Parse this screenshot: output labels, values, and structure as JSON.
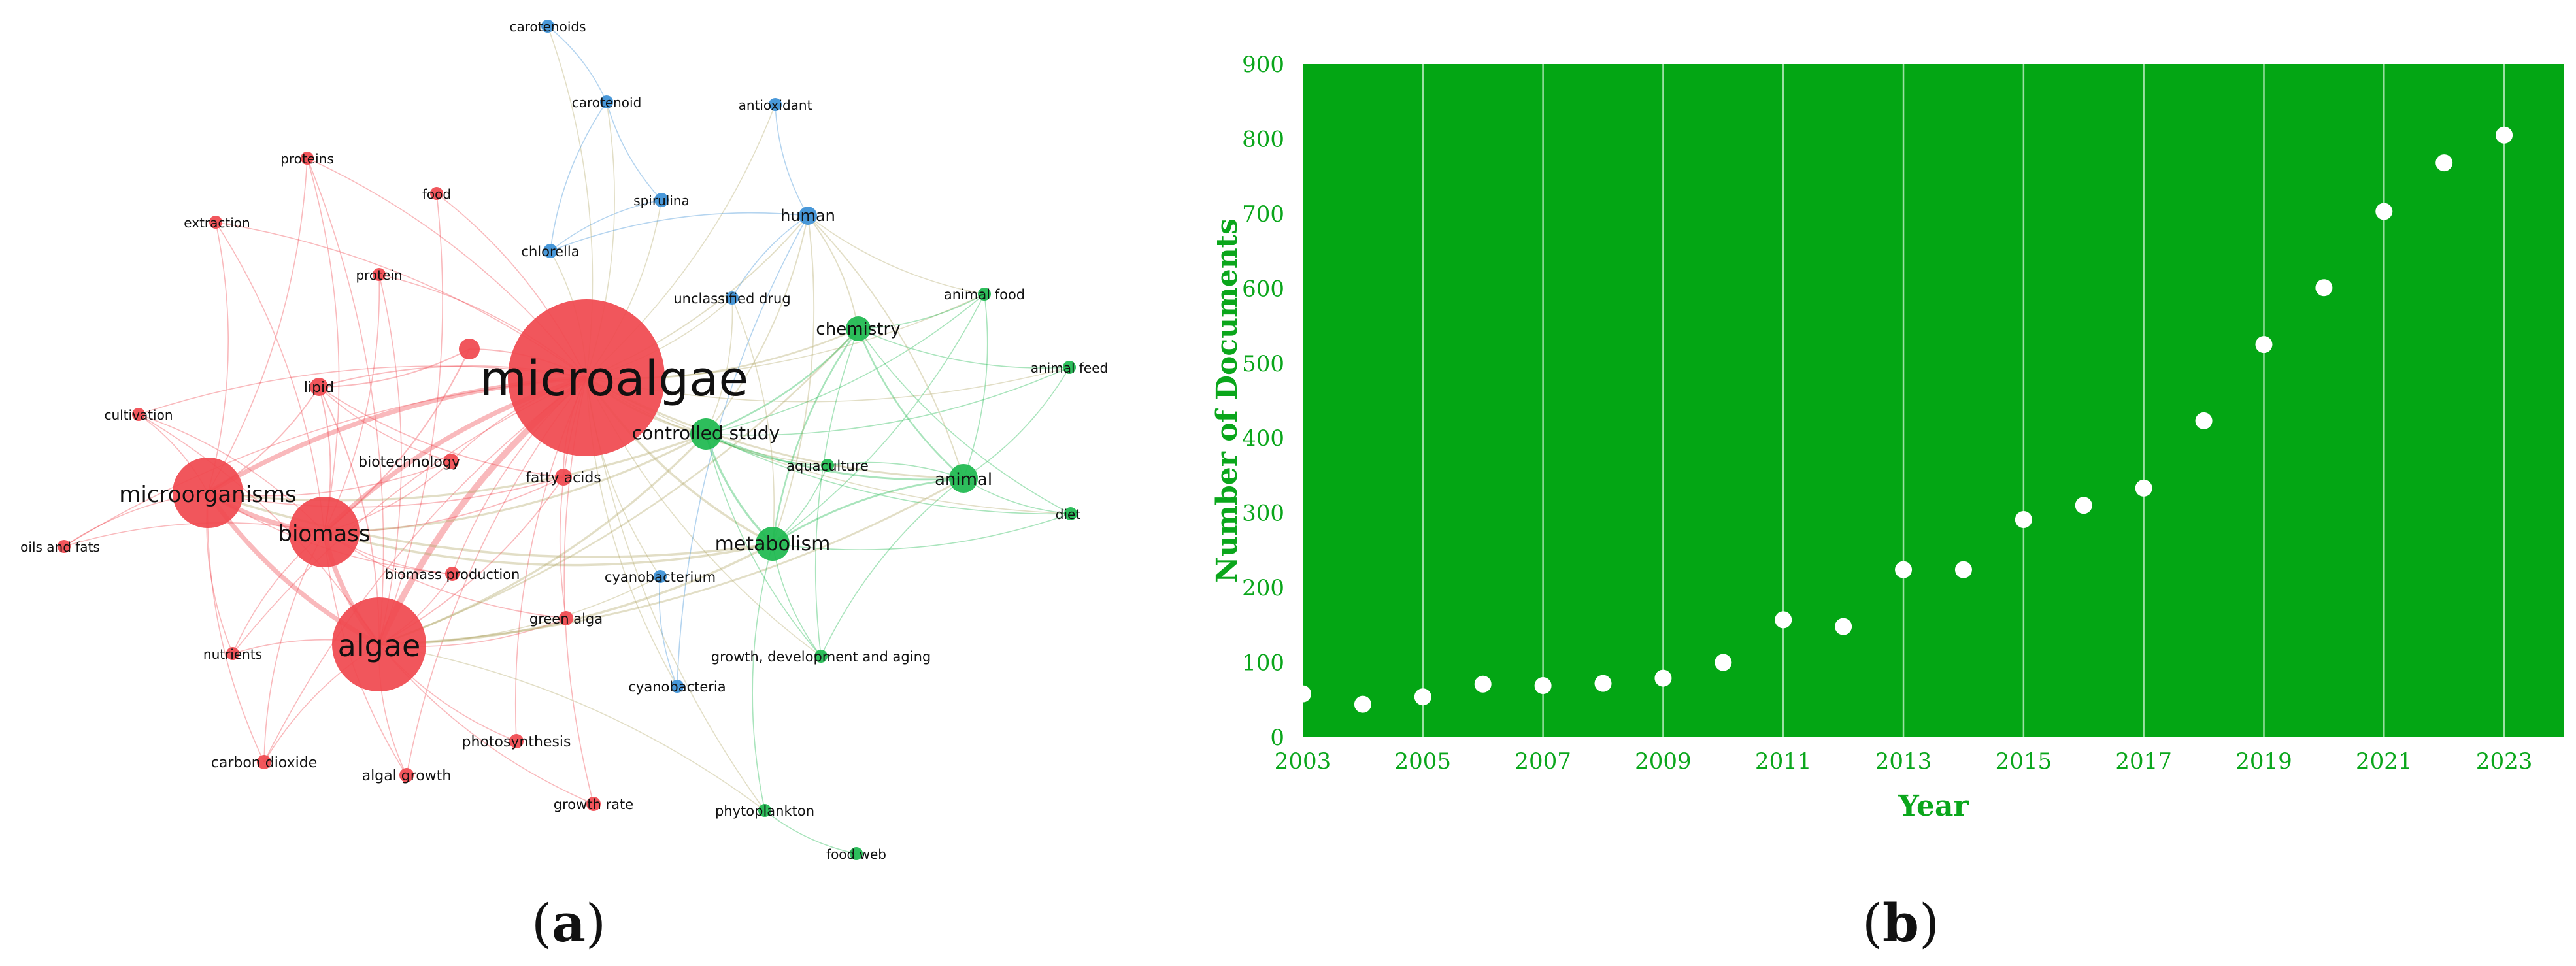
{
  "panel_a": {
    "label_prefix": "(",
    "label_letter": "a",
    "label_suffix": ")",
    "colors": {
      "red": "#f0484e",
      "green": "#1cb84e",
      "blue": "#3a8fd6",
      "olive": "#b3a868"
    },
    "nodes": [
      {
        "id": "microalgae",
        "label": "microalgae",
        "cluster": "red",
        "weight": 10
      },
      {
        "id": "microorganisms",
        "label": "microorganisms",
        "cluster": "red",
        "weight": 4.5
      },
      {
        "id": "biomass",
        "label": "biomass",
        "cluster": "red",
        "weight": 4.5
      },
      {
        "id": "algae",
        "label": "algae",
        "cluster": "red",
        "weight": 6
      },
      {
        "id": "lipid",
        "label": "lipid",
        "cluster": "red",
        "weight": 1.2
      },
      {
        "id": "cultivation",
        "label": "cultivation",
        "cluster": "red",
        "weight": 0.8
      },
      {
        "id": "oils-and-fats",
        "label": "oils and fats",
        "cluster": "red",
        "weight": 0.8
      },
      {
        "id": "proteins",
        "label": "proteins",
        "cluster": "red",
        "weight": 0.8
      },
      {
        "id": "food",
        "label": "food",
        "cluster": "red",
        "weight": 0.8
      },
      {
        "id": "extraction",
        "label": "extraction",
        "cluster": "red",
        "weight": 0.8
      },
      {
        "id": "protein",
        "label": "protein",
        "cluster": "red",
        "weight": 0.8
      },
      {
        "id": "biotechnology",
        "label": "biotechnology",
        "cluster": "red",
        "weight": 1
      },
      {
        "id": "fatty-acids",
        "label": "fatty acids",
        "cluster": "red",
        "weight": 1.1
      },
      {
        "id": "biomass-production",
        "label": "biomass production",
        "cluster": "red",
        "weight": 0.9
      },
      {
        "id": "green-alga",
        "label": "green alga",
        "cluster": "red",
        "weight": 0.9
      },
      {
        "id": "nutrients",
        "label": "nutrients",
        "cluster": "red",
        "weight": 0.8
      },
      {
        "id": "carbon-dioxide",
        "label": "carbon dioxide",
        "cluster": "red",
        "weight": 0.9
      },
      {
        "id": "algal-growth",
        "label": "algal growth",
        "cluster": "red",
        "weight": 0.9
      },
      {
        "id": "photosynthesis",
        "label": "photosynthesis",
        "cluster": "red",
        "weight": 0.9
      },
      {
        "id": "growth-rate",
        "label": "growth rate",
        "cluster": "red",
        "weight": 0.9
      },
      {
        "id": "unlabeled-red",
        "label": "",
        "cluster": "red",
        "weight": 1.3
      },
      {
        "id": "controlled-study",
        "label": "controlled study",
        "cluster": "green",
        "weight": 2
      },
      {
        "id": "chemistry",
        "label": "chemistry",
        "cluster": "green",
        "weight": 1.6
      },
      {
        "id": "animal-food",
        "label": "animal food",
        "cluster": "green",
        "weight": 0.8
      },
      {
        "id": "animal-feed",
        "label": "animal feed",
        "cluster": "green",
        "weight": 0.8
      },
      {
        "id": "aquaculture",
        "label": "aquaculture",
        "cluster": "green",
        "weight": 0.8
      },
      {
        "id": "animal",
        "label": "animal",
        "cluster": "green",
        "weight": 1.8
      },
      {
        "id": "diet",
        "label": "diet",
        "cluster": "green",
        "weight": 0.8
      },
      {
        "id": "metabolism",
        "label": "metabolism",
        "cluster": "green",
        "weight": 2.2
      },
      {
        "id": "growth-development-aging",
        "label": "growth, development and aging",
        "cluster": "green",
        "weight": 0.8
      },
      {
        "id": "phytoplankton",
        "label": "phytoplankton",
        "cluster": "green",
        "weight": 0.8
      },
      {
        "id": "food-web",
        "label": "food web",
        "cluster": "green",
        "weight": 0.8
      },
      {
        "id": "carotenoids",
        "label": "carotenoids",
        "cluster": "blue",
        "weight": 0.8
      },
      {
        "id": "carotenoid",
        "label": "carotenoid",
        "cluster": "blue",
        "weight": 0.8
      },
      {
        "id": "antioxidant",
        "label": "antioxidant",
        "cluster": "blue",
        "weight": 0.8
      },
      {
        "id": "spirulina",
        "label": "spirulina",
        "cluster": "blue",
        "weight": 0.9
      },
      {
        "id": "human",
        "label": "human",
        "cluster": "blue",
        "weight": 1.2
      },
      {
        "id": "chlorella",
        "label": "chlorella",
        "cluster": "blue",
        "weight": 0.9
      },
      {
        "id": "unclassified-drug",
        "label": "unclassified drug",
        "cluster": "blue",
        "weight": 0.8
      },
      {
        "id": "cyanobacterium",
        "label": "cyanobacterium",
        "cluster": "blue",
        "weight": 0.8
      },
      {
        "id": "cyanobacteria",
        "label": "cyanobacteria",
        "cluster": "blue",
        "weight": 0.8
      }
    ],
    "links": [
      [
        "microalgae",
        "microorganisms"
      ],
      [
        "microalgae",
        "biomass"
      ],
      [
        "microalgae",
        "algae"
      ],
      [
        "microalgae",
        "lipid"
      ],
      [
        "microalgae",
        "cultivation"
      ],
      [
        "microalgae",
        "oils-and-fats"
      ],
      [
        "microalgae",
        "proteins"
      ],
      [
        "microalgae",
        "food"
      ],
      [
        "microalgae",
        "extraction"
      ],
      [
        "microalgae",
        "protein"
      ],
      [
        "microalgae",
        "biotechnology"
      ],
      [
        "microalgae",
        "fatty-acids"
      ],
      [
        "microalgae",
        "biomass-production"
      ],
      [
        "microalgae",
        "green-alga"
      ],
      [
        "microalgae",
        "nutrients"
      ],
      [
        "microalgae",
        "carbon-dioxide"
      ],
      [
        "microalgae",
        "algal-growth"
      ],
      [
        "microalgae",
        "photosynthesis"
      ],
      [
        "microalgae",
        "growth-rate"
      ],
      [
        "microalgae",
        "controlled-study"
      ],
      [
        "microalgae",
        "chemistry"
      ],
      [
        "microalgae",
        "animal-food"
      ],
      [
        "microalgae",
        "animal-feed"
      ],
      [
        "microalgae",
        "aquaculture"
      ],
      [
        "microalgae",
        "animal"
      ],
      [
        "microalgae",
        "diet"
      ],
      [
        "microalgae",
        "metabolism"
      ],
      [
        "microalgae",
        "growth-development-aging"
      ],
      [
        "microalgae",
        "phytoplankton"
      ],
      [
        "microalgae",
        "carotenoids"
      ],
      [
        "microalgae",
        "carotenoid"
      ],
      [
        "microalgae",
        "antioxidant"
      ],
      [
        "microalgae",
        "spirulina"
      ],
      [
        "microalgae",
        "human"
      ],
      [
        "microalgae",
        "chlorella"
      ],
      [
        "microalgae",
        "unclassified-drug"
      ],
      [
        "microalgae",
        "cyanobacterium"
      ],
      [
        "microalgae",
        "cyanobacteria"
      ],
      [
        "microalgae",
        "unlabeled-red"
      ],
      [
        "microorganisms",
        "biomass"
      ],
      [
        "microorganisms",
        "algae"
      ],
      [
        "microorganisms",
        "lipid"
      ],
      [
        "microorganisms",
        "cultivation"
      ],
      [
        "microorganisms",
        "oils-and-fats"
      ],
      [
        "microorganisms",
        "proteins"
      ],
      [
        "microorganisms",
        "extraction"
      ],
      [
        "microorganisms",
        "biotechnology"
      ],
      [
        "microorganisms",
        "fatty-acids"
      ],
      [
        "microorganisms",
        "nutrients"
      ],
      [
        "microorganisms",
        "metabolism"
      ],
      [
        "microorganisms",
        "controlled-study"
      ],
      [
        "microorganisms",
        "biomass-production"
      ],
      [
        "microorganisms",
        "carbon-dioxide"
      ],
      [
        "biomass",
        "algae"
      ],
      [
        "biomass",
        "lipid"
      ],
      [
        "biomass",
        "cultivation"
      ],
      [
        "biomass",
        "oils-and-fats"
      ],
      [
        "biomass",
        "biotechnology"
      ],
      [
        "biomass",
        "fatty-acids"
      ],
      [
        "biomass",
        "biomass-production"
      ],
      [
        "biomass",
        "nutrients"
      ],
      [
        "biomass",
        "carbon-dioxide"
      ],
      [
        "biomass",
        "algal-growth"
      ],
      [
        "biomass",
        "metabolism"
      ],
      [
        "biomass",
        "controlled-study"
      ],
      [
        "biomass",
        "proteins"
      ],
      [
        "biomass",
        "extraction"
      ],
      [
        "biomass",
        "protein"
      ],
      [
        "biomass",
        "green-alga"
      ],
      [
        "biomass",
        "unlabeled-red"
      ],
      [
        "algae",
        "lipid"
      ],
      [
        "algae",
        "nutrients"
      ],
      [
        "algae",
        "carbon-dioxide"
      ],
      [
        "algae",
        "algal-growth"
      ],
      [
        "algae",
        "photosynthesis"
      ],
      [
        "algae",
        "growth-rate"
      ],
      [
        "algae",
        "fatty-acids"
      ],
      [
        "algae",
        "biomass-production"
      ],
      [
        "algae",
        "green-alga"
      ],
      [
        "algae",
        "metabolism"
      ],
      [
        "algae",
        "controlled-study"
      ],
      [
        "algae",
        "animal"
      ],
      [
        "algae",
        "chemistry"
      ],
      [
        "algae",
        "cultivation"
      ],
      [
        "algae",
        "protein"
      ],
      [
        "algae",
        "proteins"
      ],
      [
        "algae",
        "food"
      ],
      [
        "algae",
        "cyanobacterium"
      ],
      [
        "lipid",
        "fatty-acids"
      ],
      [
        "lipid",
        "biotechnology"
      ],
      [
        "lipid",
        "unlabeled-red"
      ],
      [
        "controlled-study",
        "chemistry"
      ],
      [
        "controlled-study",
        "animal"
      ],
      [
        "controlled-study",
        "metabolism"
      ],
      [
        "controlled-study",
        "animal-food"
      ],
      [
        "controlled-study",
        "animal-feed"
      ],
      [
        "controlled-study",
        "diet"
      ],
      [
        "controlled-study",
        "human"
      ],
      [
        "controlled-study",
        "aquaculture"
      ],
      [
        "controlled-study",
        "unclassified-drug"
      ],
      [
        "controlled-study",
        "growth-development-aging"
      ],
      [
        "chemistry",
        "animal"
      ],
      [
        "chemistry",
        "metabolism"
      ],
      [
        "chemistry",
        "animal-food"
      ],
      [
        "chemistry",
        "human"
      ],
      [
        "chemistry",
        "animal-feed"
      ],
      [
        "chemistry",
        "diet"
      ],
      [
        "chemistry",
        "growth-development-aging"
      ],
      [
        "animal",
        "metabolism"
      ],
      [
        "animal",
        "animal-food"
      ],
      [
        "animal",
        "animal-feed"
      ],
      [
        "animal",
        "diet"
      ],
      [
        "animal",
        "human"
      ],
      [
        "animal",
        "growth-development-aging"
      ],
      [
        "animal",
        "aquaculture"
      ],
      [
        "metabolism",
        "human"
      ],
      [
        "metabolism",
        "growth-development-aging"
      ],
      [
        "metabolism",
        "diet"
      ],
      [
        "metabolism",
        "phytoplankton"
      ],
      [
        "metabolism",
        "unclassified-drug"
      ],
      [
        "metabolism",
        "animal-food"
      ],
      [
        "metabolism",
        "aquaculture"
      ],
      [
        "human",
        "unclassified-drug"
      ],
      [
        "human",
        "animal-food"
      ],
      [
        "human",
        "chlorella"
      ],
      [
        "human",
        "cyanobacteria"
      ],
      [
        "carotenoid",
        "carotenoids"
      ],
      [
        "carotenoid",
        "chlorella"
      ],
      [
        "carotenoid",
        "spirulina"
      ],
      [
        "antioxidant",
        "human"
      ],
      [
        "spirulina",
        "chlorella"
      ],
      [
        "cyanobacterium",
        "cyanobacteria"
      ],
      [
        "phytoplankton",
        "food-web"
      ],
      [
        "phytoplankton",
        "algae"
      ]
    ]
  },
  "panel_b": {
    "label_prefix": "(",
    "label_letter": "b",
    "label_suffix": ")",
    "colors": {
      "plot_bg": "#03a614",
      "gridline": "#9be0a3",
      "marker": "#ffffff",
      "text": "#0aa61b"
    },
    "chart_data": {
      "type": "scatter",
      "xlabel": "Year",
      "ylabel": "Number of Documents",
      "xlim": [
        2003,
        2024
      ],
      "ylim": [
        0,
        900
      ],
      "xticks": [
        "2003",
        "2005",
        "2007",
        "2009",
        "2011",
        "2013",
        "2015",
        "2017",
        "2019",
        "2021",
        "2023"
      ],
      "yticks": [
        "0",
        "100",
        "200",
        "300",
        "400",
        "500",
        "600",
        "700",
        "800",
        "900"
      ],
      "grid": "vertical",
      "x": [
        2003,
        2004,
        2005,
        2006,
        2007,
        2008,
        2009,
        2010,
        2011,
        2012,
        2013,
        2014,
        2015,
        2016,
        2017,
        2018,
        2019,
        2020,
        2021,
        2022,
        2023
      ],
      "y": [
        58,
        44,
        54,
        71,
        69,
        72,
        79,
        100,
        157,
        148,
        224,
        224,
        291,
        310,
        333,
        423,
        525,
        601,
        703,
        768,
        805
      ]
    }
  }
}
